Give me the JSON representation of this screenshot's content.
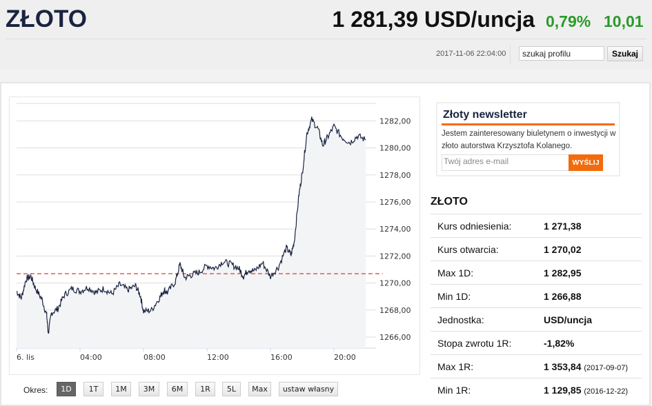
{
  "header": {
    "title": "ZŁOTO",
    "price": "1 281,39 USD/uncja",
    "change_pct": "0,79%",
    "change_abs": "10,01",
    "datetime": "2017-11-06 22:04:00",
    "search_value": "szukaj profilu",
    "search_button": "Szukaj"
  },
  "colors": {
    "accent": "#f36b0c",
    "positive": "#2a9a2a",
    "line": "#1a2340",
    "reference": "#e02020"
  },
  "chart_data": {
    "type": "line",
    "x_unit": "hours since 00:00",
    "xlim": [
      0,
      22.07
    ],
    "ylim": [
      1265.5,
      1284
    ],
    "x_ticks": [
      {
        "x": 0,
        "label": "6. lis"
      },
      {
        "x": 4,
        "label": "04:00"
      },
      {
        "x": 8,
        "label": "08:00"
      },
      {
        "x": 12,
        "label": "12:00"
      },
      {
        "x": 16,
        "label": "16:00"
      },
      {
        "x": 20,
        "label": "20:00"
      }
    ],
    "y_ticks": [
      {
        "y": 1266,
        "label": "1266,00"
      },
      {
        "y": 1268,
        "label": "1268,00"
      },
      {
        "y": 1270,
        "label": "1270,00"
      },
      {
        "y": 1272,
        "label": "1272,00"
      },
      {
        "y": 1274,
        "label": "1274,00"
      },
      {
        "y": 1276,
        "label": "1276,00"
      },
      {
        "y": 1278,
        "label": "1278,00"
      },
      {
        "y": 1280,
        "label": "1280,00"
      },
      {
        "y": 1282,
        "label": "1282,00"
      }
    ],
    "reference_line": 1271.1,
    "series": [
      {
        "name": "ZŁOTO",
        "x": [
          0,
          0.3,
          0.6,
          0.9,
          1.2,
          1.6,
          1.9,
          2.0,
          2.2,
          2.6,
          3.0,
          3.5,
          4,
          4.5,
          5,
          5.5,
          6,
          6.5,
          7,
          7.5,
          7.8,
          8.0,
          8.5,
          9,
          9.3,
          9.5,
          10,
          10.3,
          10.6,
          11,
          11.5,
          12,
          12.5,
          13,
          13.5,
          14,
          14.3,
          14.6,
          15,
          15.5,
          16,
          16.5,
          17,
          17.3,
          17.5,
          17.8,
          18,
          18.3,
          18.6,
          19,
          19.3,
          19.6,
          20,
          20.5,
          21,
          21.5,
          22
        ],
        "y": [
          1269.8,
          1269.3,
          1270.7,
          1270.9,
          1270.0,
          1269.2,
          1268.0,
          1266.7,
          1268.2,
          1268.5,
          1269.5,
          1270.0,
          1269.8,
          1270.1,
          1269.7,
          1270.0,
          1269.6,
          1270.3,
          1269.9,
          1270.2,
          1269.5,
          1268.3,
          1268.4,
          1269.3,
          1269.9,
          1269.7,
          1270.5,
          1271.8,
          1270.8,
          1271.0,
          1271.2,
          1271.7,
          1271.5,
          1272.0,
          1271.8,
          1271.5,
          1270.9,
          1271.4,
          1271.3,
          1271.9,
          1270.9,
          1271.6,
          1273.0,
          1272.5,
          1273.5,
          1277.0,
          1278.5,
          1281.5,
          1282.5,
          1281.8,
          1280.6,
          1281.2,
          1282.0,
          1281.2,
          1280.8,
          1281.3,
          1281.0
        ]
      }
    ]
  },
  "periods": {
    "label": "Okres:",
    "items": [
      "1D",
      "1T",
      "1M",
      "3M",
      "6M",
      "1R",
      "5L",
      "Max",
      "ustaw własny"
    ],
    "active": "1D"
  },
  "newsletter": {
    "title": "Złoty newsletter",
    "text": "Jestem zainteresowany biuletynem o inwestycji w złoto autorstwa Krzysztofa Kolanego.",
    "email_placeholder": "Twój adres e-mail",
    "send": "WYŚLIJ"
  },
  "stats": {
    "title": "ZŁOTO",
    "rows": [
      {
        "label": "Kurs odniesienia:",
        "value": "1 271,38",
        "date": ""
      },
      {
        "label": "Kurs otwarcia:",
        "value": "1 270,02",
        "date": ""
      },
      {
        "label": "Max 1D:",
        "value": "1 282,95",
        "date": ""
      },
      {
        "label": "Min 1D:",
        "value": "1 266,88",
        "date": ""
      },
      {
        "label": "Jednostka:",
        "value": "USD/uncja",
        "date": ""
      },
      {
        "label": "Stopa zwrotu 1R:",
        "value": "-1,82%",
        "date": ""
      },
      {
        "label": "Max 1R:",
        "value": "1 353,84",
        "date": "(2017-09-07)"
      },
      {
        "label": "Min 1R:",
        "value": "1 129,85",
        "date": "(2016-12-22)"
      }
    ]
  }
}
